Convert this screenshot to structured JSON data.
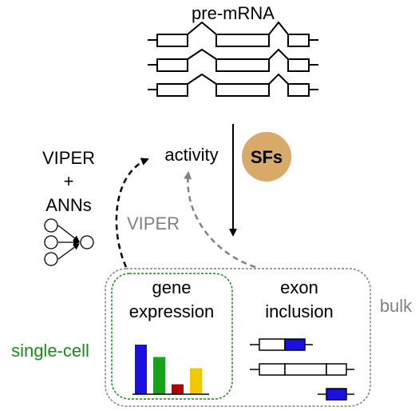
{
  "title": "pre-mRNA",
  "labels": {
    "activity": "activity",
    "sfs": "SFs",
    "viper_ann_line1": "VIPER",
    "viper_ann_line2": "+",
    "viper_ann_line3": "ANNs",
    "viper": "VIPER",
    "gene_expression_line1": "gene",
    "gene_expression_line2": "expression",
    "exon_inclusion_line1": "exon",
    "exon_inclusion_line2": "inclusion",
    "bulk": "bulk",
    "single_cell": "single-cell"
  },
  "colors": {
    "sfs_circle": "#d9a96a",
    "green": "#1a8a1a",
    "gray": "#808080",
    "blue": "#1a10e0",
    "bar_green": "#1aa11a",
    "bar_red": "#b00000",
    "bar_yellow": "#f0c800"
  },
  "bar_chart": {
    "values": [
      4,
      3,
      0.8,
      2.1
    ],
    "colors": [
      "#1a10e0",
      "#1aa11a",
      "#b00000",
      "#f0c800"
    ]
  }
}
